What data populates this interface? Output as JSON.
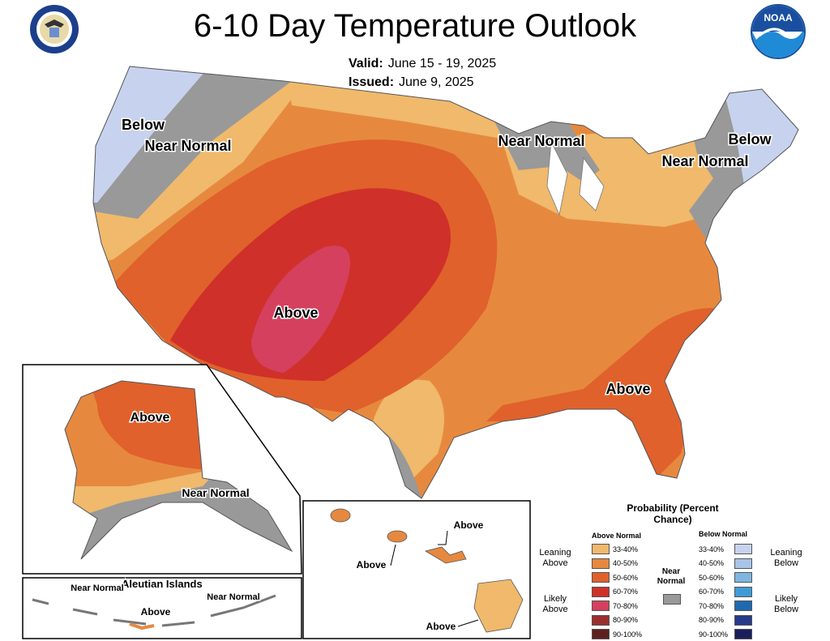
{
  "header": {
    "title": "6-10 Day Temperature Outlook",
    "valid_label": "Valid:",
    "valid_value": "June 15 - 19, 2025",
    "issued_label": "Issued:",
    "issued_value": "June 9, 2025"
  },
  "logos": {
    "left": "doc-seal-icon",
    "right": "noaa-logo-icon",
    "noaa_text": "NOAA"
  },
  "colors": {
    "above_33_40": "#F0B96B",
    "above_40_50": "#E6893F",
    "above_50_60": "#E0612B",
    "above_60_70": "#CF3029",
    "above_70_80": "#D5405E",
    "above_80_90": "#9B2F2E",
    "above_90_100": "#5E1F1F",
    "near_normal": "#999999",
    "below_33_40": "#C7D3EE",
    "below_40_50": "#A8C4E8",
    "below_50_60": "#7DB6E0",
    "below_60_70": "#3F9BD6",
    "below_70_80": "#1F69B1",
    "below_80_90": "#263A8A",
    "below_90_100": "#1A1F5B"
  },
  "map_labels": {
    "below_nw": "Below",
    "near_normal_nw": "Near Normal",
    "above_sw": "Above",
    "near_normal_gl": "Near Normal",
    "near_normal_ne": "Near Normal",
    "below_ne": "Below",
    "above_se": "Above"
  },
  "alaska": {
    "above": "Above",
    "near_normal": "Near Normal"
  },
  "aleutian": {
    "title": "Aleutian Islands",
    "near_normal_w": "Near Normal",
    "above": "Above",
    "near_normal_e": "Near Normal"
  },
  "hawaii": {
    "above_ne": "Above",
    "above_w": "Above",
    "above_s": "Above"
  },
  "legend": {
    "title": "Probability (Percent Chance)",
    "above_head": "Above Normal",
    "below_head": "Below Normal",
    "near_label": "Near Normal",
    "leaning_above": "Leaning Above",
    "likely_above": "Likely Above",
    "leaning_below": "Leaning Below",
    "likely_below": "Likely Below",
    "ranges": [
      "33-40%",
      "40-50%",
      "50-60%",
      "60-70%",
      "70-80%",
      "80-90%",
      "90-100%"
    ]
  }
}
